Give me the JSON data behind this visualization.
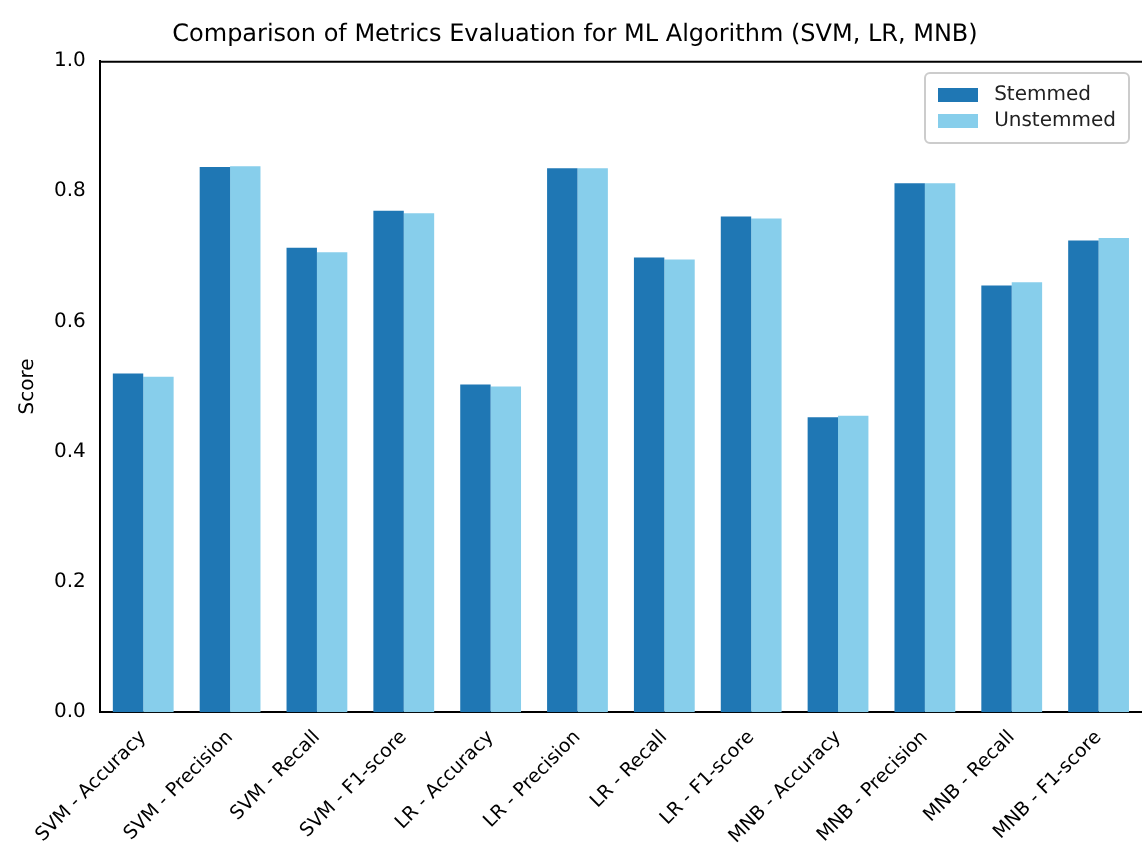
{
  "chart_data": {
    "type": "bar",
    "title": "Comparison of Metrics Evaluation for ML Algorithm (SVM, LR, MNB)",
    "ylabel": "Score",
    "categories": [
      "SVM - Accuracy",
      "SVM - Precision",
      "SVM - Recall",
      "SVM - F1-score",
      "LR - Accuracy",
      "LR - Precision",
      "LR - Recall",
      "LR - F1-score",
      "MNB - Accuracy",
      "MNB - Precision",
      "MNB - Recall",
      "MNB - F1-score"
    ],
    "series": [
      {
        "name": "Stemmed",
        "color": "#1f77b4",
        "values": [
          0.52,
          0.837,
          0.713,
          0.77,
          0.503,
          0.835,
          0.698,
          0.761,
          0.453,
          0.812,
          0.655,
          0.724
        ]
      },
      {
        "name": "Unstemmed",
        "color": "#87ceeb",
        "values": [
          0.515,
          0.838,
          0.706,
          0.766,
          0.5,
          0.835,
          0.695,
          0.758,
          0.455,
          0.812,
          0.66,
          0.728
        ]
      }
    ],
    "ylim": [
      0,
      1
    ],
    "yticks": [
      {
        "value": 0,
        "label": "0.0"
      },
      0.2,
      0.4,
      0.6,
      0.8,
      {
        "value": 1,
        "label": "1.0"
      }
    ],
    "grid": false,
    "legend": "top right"
  }
}
